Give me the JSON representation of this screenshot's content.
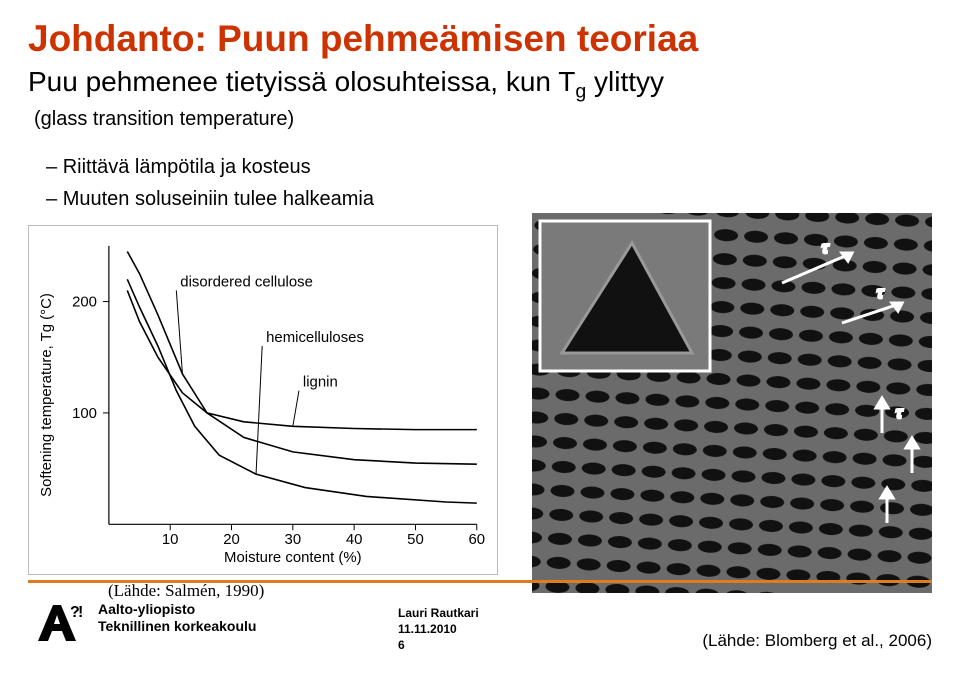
{
  "title": "Johdanto: Puun pehmeämisen teoriaa",
  "title_color": "#cc3300",
  "intro": "Puu pehmenee tietyissä olosuhteissa, kun T",
  "intro_sub": "g",
  "intro_tail": " ylittyy",
  "sub1": "(glass transition temperature)",
  "bullet1": "Riittävä lämpötila ja kosteus",
  "bullet2": "Muuten soluseiniin tulee halkeamia",
  "chart": {
    "type": "line",
    "ylabel": "Softening temperature, Tg (°C)",
    "xlabel": "Moisture content (%)",
    "xlim": [
      0,
      60
    ],
    "ylim": [
      0,
      250
    ],
    "xticks": [
      10,
      20,
      30,
      40,
      50,
      60
    ],
    "yticks": [
      100,
      200
    ],
    "curves": [
      {
        "label": "disordered cellulose",
        "label_xy": [
          11,
          210
        ],
        "points": [
          [
            3,
            245
          ],
          [
            5,
            225
          ],
          [
            8,
            188
          ],
          [
            12,
            135
          ],
          [
            16,
            100
          ],
          [
            22,
            78
          ],
          [
            30,
            65
          ],
          [
            40,
            58
          ],
          [
            50,
            55
          ],
          [
            60,
            54
          ]
        ]
      },
      {
        "label": "hemicelluloses",
        "label_xy": [
          25,
          160
        ],
        "points": [
          [
            3,
            220
          ],
          [
            5,
            195
          ],
          [
            8,
            160
          ],
          [
            11,
            120
          ],
          [
            14,
            88
          ],
          [
            18,
            62
          ],
          [
            24,
            45
          ],
          [
            32,
            33
          ],
          [
            42,
            25
          ],
          [
            55,
            20
          ],
          [
            60,
            19
          ]
        ]
      },
      {
        "label": "lignin",
        "label_xy": [
          31,
          120
        ],
        "points": [
          [
            3,
            210
          ],
          [
            5,
            182
          ],
          [
            8,
            150
          ],
          [
            12,
            118
          ],
          [
            16,
            100
          ],
          [
            22,
            92
          ],
          [
            30,
            88
          ],
          [
            40,
            86
          ],
          [
            50,
            85
          ],
          [
            60,
            85
          ]
        ]
      }
    ],
    "citation": "(Lähde: Salmén, 1990)"
  },
  "micrograph": {
    "citation": "(Lähde: Blomberg et al., 2006)"
  },
  "footer": {
    "org_line1": "Aalto-yliopisto",
    "org_line2": "Teknillinen korkeakoulu",
    "author": "Lauri Rautkari",
    "date": "11.11.2010",
    "page": "6",
    "rule_color": "#e07c1f"
  }
}
